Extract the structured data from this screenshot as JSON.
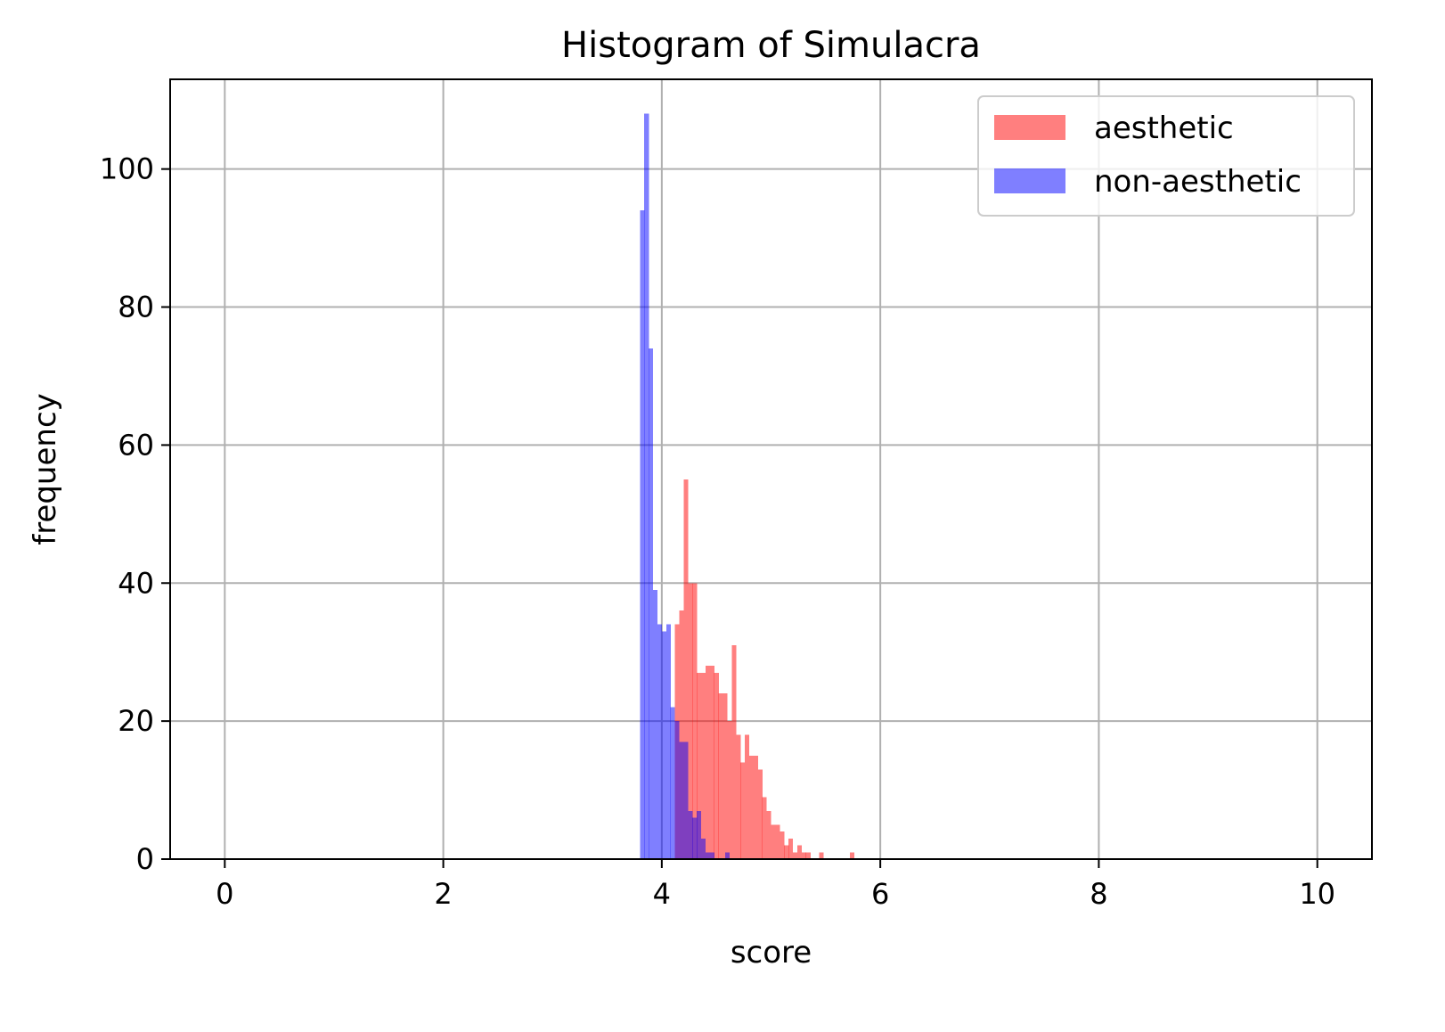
{
  "chart_data": {
    "type": "bar",
    "title": "Histogram of Simulacra",
    "xlabel": "score",
    "ylabel": "frequency",
    "xlim": [
      -0.5,
      10.5
    ],
    "ylim": [
      0,
      113
    ],
    "xticks": [
      0,
      2,
      4,
      6,
      8,
      10
    ],
    "yticks": [
      0,
      20,
      40,
      60,
      80,
      100
    ],
    "grid": true,
    "legend_position": "top-right",
    "bin_width": 0.0412,
    "series": [
      {
        "name": "aesthetic",
        "color": "#ff0000",
        "opacity": 0.5,
        "bins": [
          [
            4.12,
            34
          ],
          [
            4.16,
            36
          ],
          [
            4.2,
            55
          ],
          [
            4.24,
            40
          ],
          [
            4.28,
            40
          ],
          [
            4.32,
            27
          ],
          [
            4.36,
            27
          ],
          [
            4.4,
            28
          ],
          [
            4.44,
            28
          ],
          [
            4.48,
            27
          ],
          [
            4.52,
            24
          ],
          [
            4.56,
            24
          ],
          [
            4.6,
            20
          ],
          [
            4.64,
            31
          ],
          [
            4.68,
            18
          ],
          [
            4.72,
            14
          ],
          [
            4.76,
            18
          ],
          [
            4.8,
            15
          ],
          [
            4.84,
            15
          ],
          [
            4.88,
            13
          ],
          [
            4.92,
            9
          ],
          [
            4.96,
            7
          ],
          [
            5.0,
            5
          ],
          [
            5.04,
            5
          ],
          [
            5.08,
            4
          ],
          [
            5.12,
            2
          ],
          [
            5.16,
            3
          ],
          [
            5.2,
            1
          ],
          [
            5.24,
            2
          ],
          [
            5.28,
            1
          ],
          [
            5.32,
            1
          ],
          [
            5.36,
            0
          ],
          [
            5.4,
            0
          ],
          [
            5.44,
            1
          ],
          [
            5.72,
            1
          ]
        ]
      },
      {
        "name": "non-aesthetic",
        "color": "#0000ff",
        "opacity": 0.5,
        "bins": [
          [
            3.8,
            94
          ],
          [
            3.84,
            108
          ],
          [
            3.88,
            74
          ],
          [
            3.92,
            39
          ],
          [
            3.96,
            34
          ],
          [
            4.0,
            33
          ],
          [
            4.04,
            34
          ],
          [
            4.08,
            22
          ],
          [
            4.12,
            20
          ],
          [
            4.16,
            17
          ],
          [
            4.2,
            17
          ],
          [
            4.24,
            7
          ],
          [
            4.28,
            6
          ],
          [
            4.32,
            7
          ],
          [
            4.36,
            3
          ],
          [
            4.4,
            1
          ],
          [
            4.44,
            1
          ],
          [
            4.58,
            1
          ]
        ]
      }
    ]
  }
}
